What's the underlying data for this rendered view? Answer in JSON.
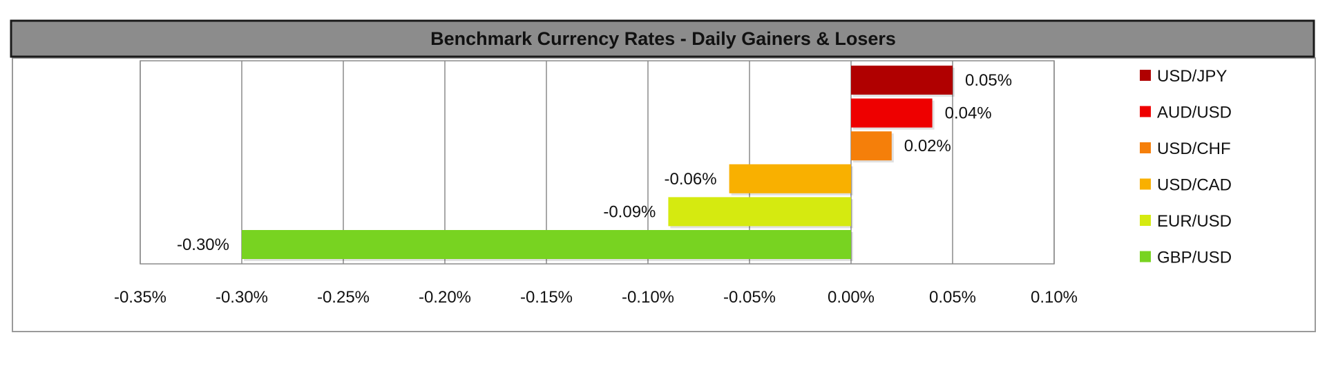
{
  "chart_data": {
    "type": "bar",
    "orientation": "horizontal",
    "title": "Benchmark Currency Rates - Daily Gainers & Losers",
    "xlim": [
      -0.35,
      0.1
    ],
    "xticks": [
      -0.35,
      -0.3,
      -0.25,
      -0.2,
      -0.15,
      -0.1,
      -0.05,
      0.0,
      0.05,
      0.1
    ],
    "xtick_labels": [
      "-0.35%",
      "-0.30%",
      "-0.25%",
      "-0.20%",
      "-0.15%",
      "-0.10%",
      "-0.05%",
      "0.00%",
      "0.05%",
      "0.10%"
    ],
    "grid": true,
    "legend_position": "right",
    "categories": [
      "USD/JPY",
      "AUD/USD",
      "USD/CHF",
      "USD/CAD",
      "EUR/USD",
      "GBP/USD"
    ],
    "values": [
      0.05,
      0.04,
      0.02,
      -0.06,
      -0.09,
      -0.3
    ],
    "value_labels": [
      "0.05%",
      "0.04%",
      "0.02%",
      "-0.06%",
      "-0.09%",
      "-0.30%"
    ],
    "colors": [
      "#b00000",
      "#ee0000",
      "#f57f0a",
      "#f9b000",
      "#d5ea10",
      "#78d321"
    ],
    "title_bar_color": "#8c8c8c"
  }
}
